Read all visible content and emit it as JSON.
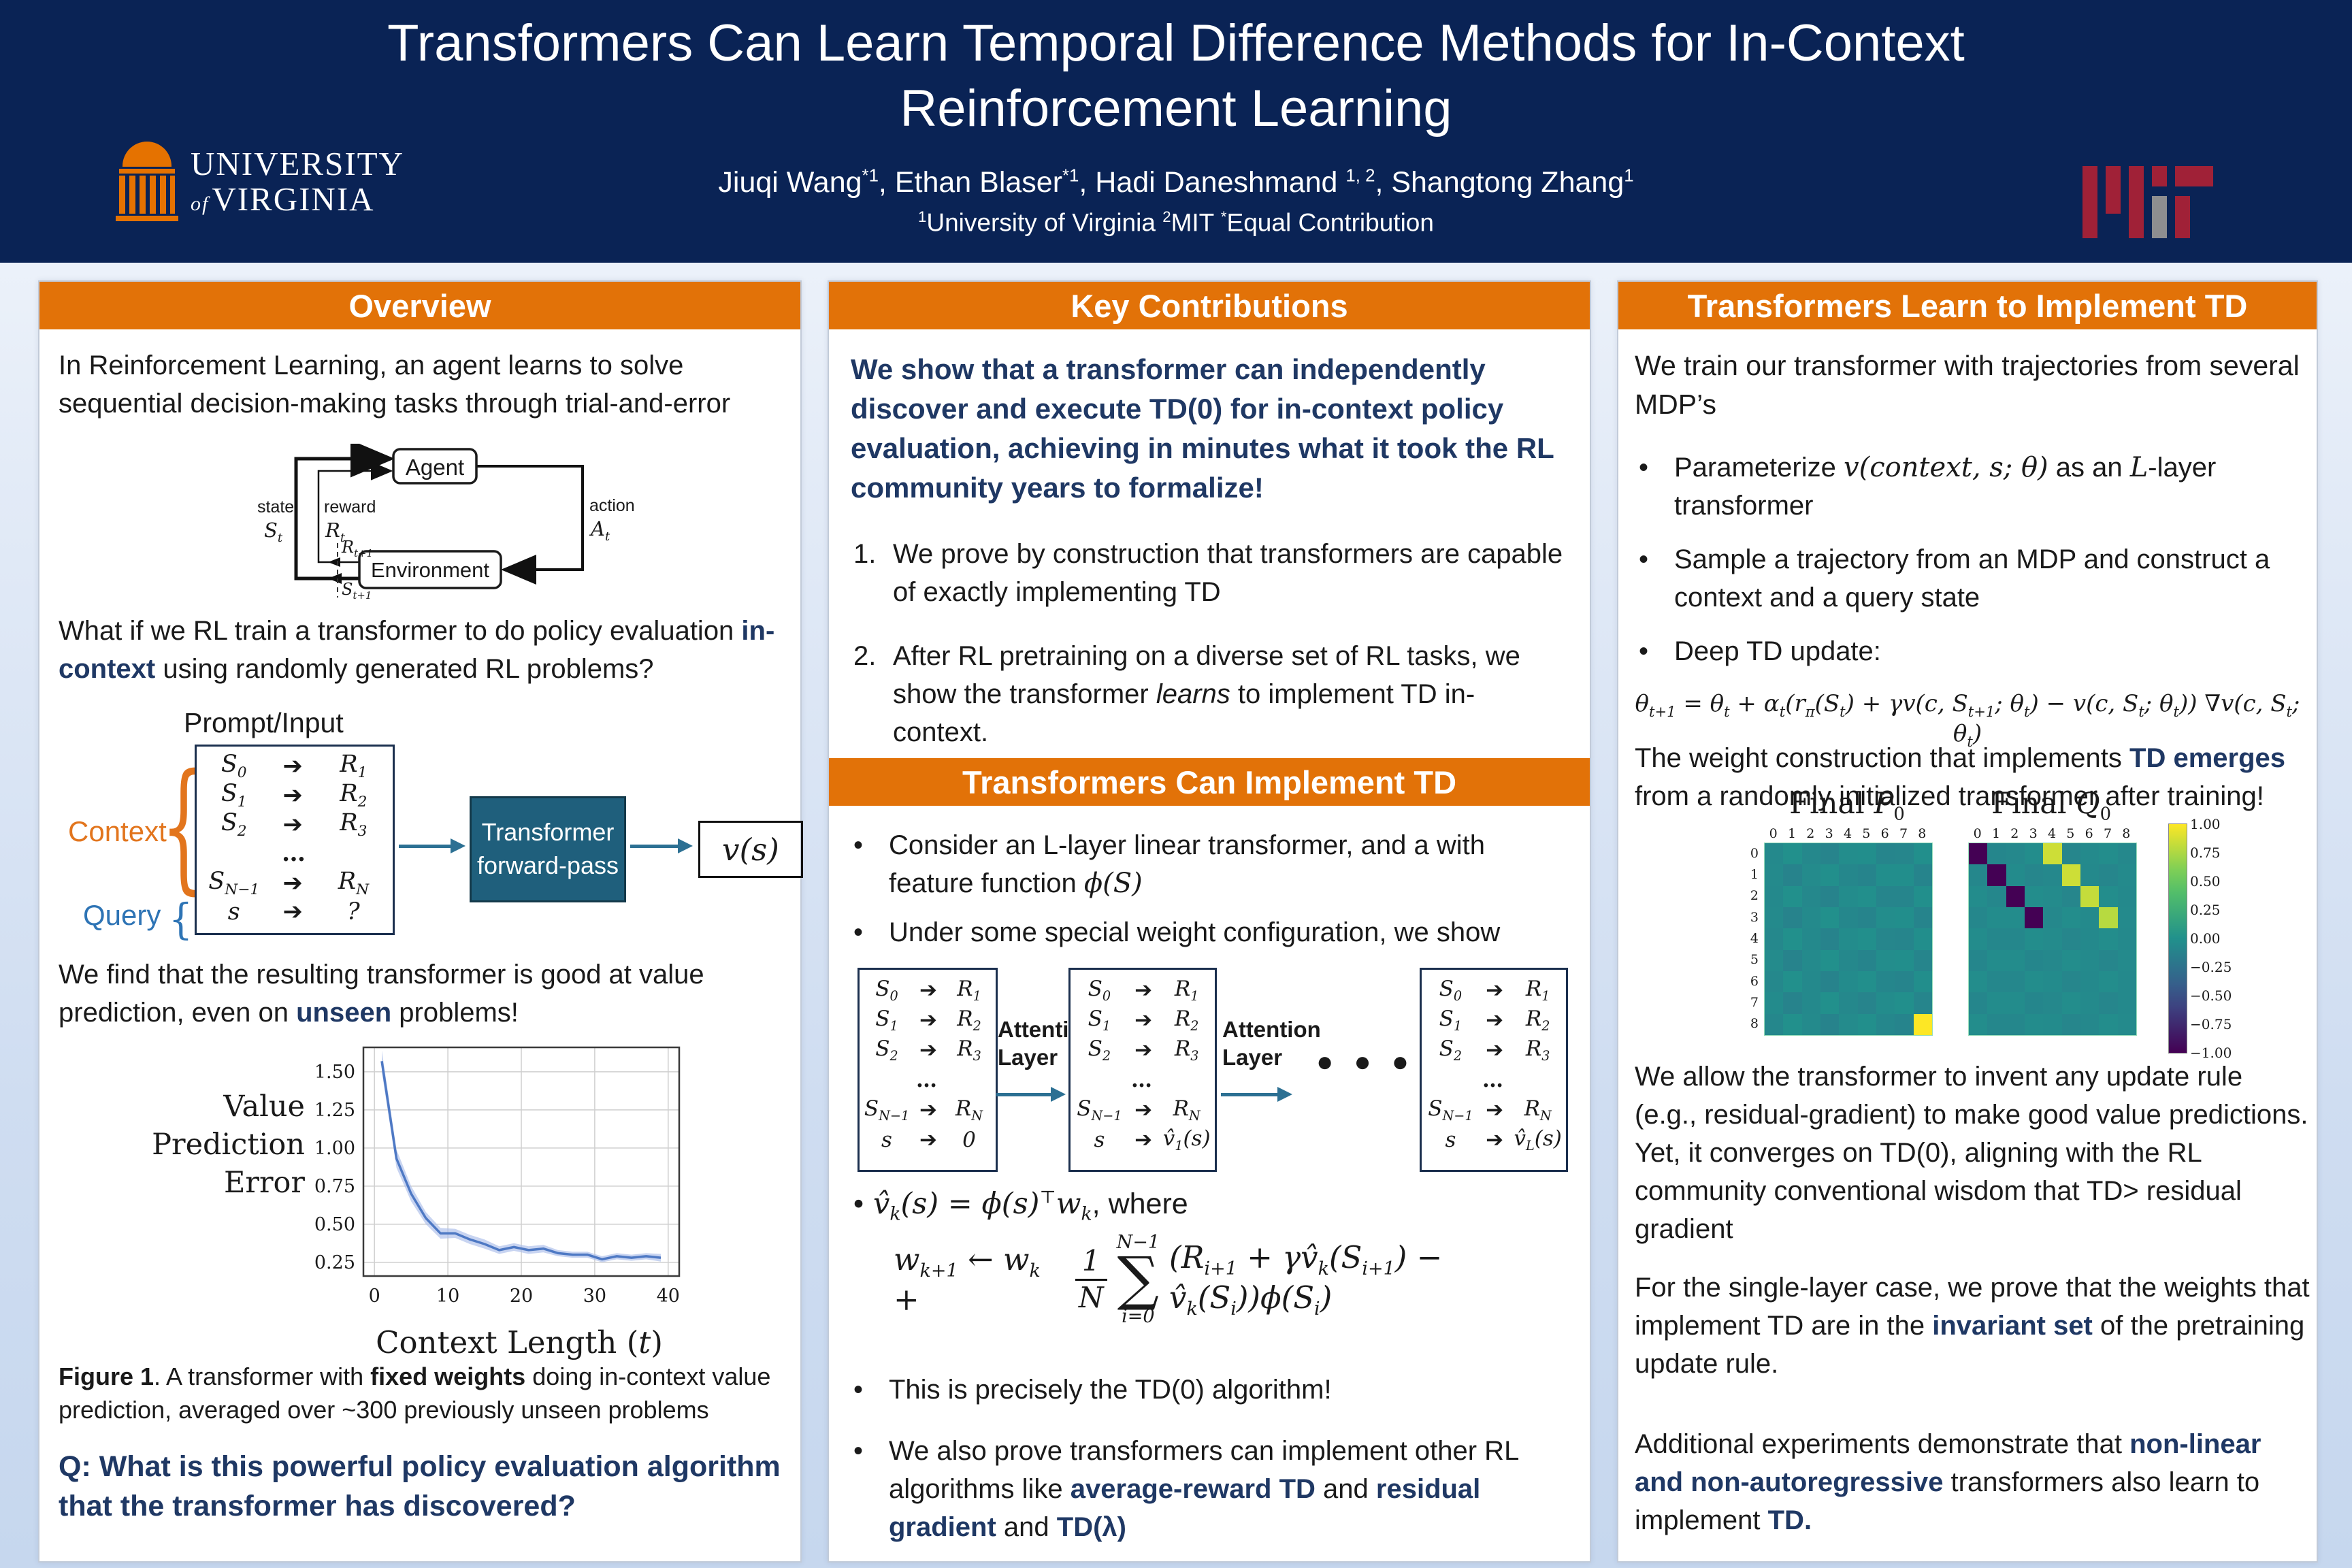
{
  "colors": {
    "navy_header": "#0a2355",
    "orange": "#e27208",
    "accent_navy": "#1f3864",
    "teal_box": "#1f5f7c",
    "arrow_teal": "#2c7093",
    "context_orange": "#e2751d",
    "query_blue": "#2e74b5",
    "chart_line": "#4e79c4",
    "chart_band": "#aabdea",
    "mit_red": "#a02137",
    "mit_gray": "#8e8e90",
    "uva_orange": "#e57200"
  },
  "header": {
    "title_line1": "Transformers Can Learn Temporal Difference Methods for In-Context",
    "title_line2": "Reinforcement Learning",
    "authors_html": "Jiuqi Wang<sup>*1</sup>, Ethan Blaser<sup>*1</sup>, Hadi Daneshmand <sup>1, 2</sup>, Shangtong Zhang<sup>1</sup>",
    "affiliations_html": "<sup>1</sup>University of Virginia <sup>2</sup>MIT <sup>*</sup>Equal Contribution",
    "uva_line1": "UNIVERSITY",
    "uva_of": "of",
    "uva_line2": "VIRGINIA"
  },
  "seq": {
    "arrow": "➔",
    "rows": [
      [
        "S<sub>0</sub>",
        "R<sub>1</sub>"
      ],
      [
        "S<sub>1</sub>",
        "R<sub>2</sub>"
      ],
      [
        "S<sub>2</sub>",
        "R<sub>3</sub>"
      ],
      null,
      [
        "S<sub>N−1</sub>",
        "R<sub>N</sub>"
      ]
    ]
  },
  "chart_data": [
    {
      "id": "value-prediction-error",
      "type": "line",
      "title": "",
      "xlabel_html": "Context Length (<i>t</i>)",
      "ylabel_lines": [
        "Value",
        "Prediction",
        "Error"
      ],
      "x": [
        1,
        3,
        5,
        7,
        9,
        11,
        13,
        15,
        17,
        19,
        21,
        23,
        25,
        27,
        29,
        31,
        33,
        35,
        37,
        39
      ],
      "y": [
        1.57,
        0.93,
        0.7,
        0.54,
        0.44,
        0.44,
        0.4,
        0.37,
        0.33,
        0.35,
        0.33,
        0.34,
        0.31,
        0.3,
        0.3,
        0.27,
        0.29,
        0.28,
        0.29,
        0.28
      ],
      "band_halfwidth": [
        0.07,
        0.06,
        0.05,
        0.04,
        0.035,
        0.03,
        0.03,
        0.03,
        0.025,
        0.025,
        0.025,
        0.025,
        0.02,
        0.02,
        0.02,
        0.02,
        0.02,
        0.02,
        0.02,
        0.025
      ],
      "xlim": [
        -1.5,
        41.5
      ],
      "ylim": [
        0.16,
        1.66
      ],
      "xticks": [
        0,
        10,
        20,
        30,
        40
      ],
      "yticks": [
        0.25,
        0.5,
        0.75,
        1.0,
        1.25,
        1.5
      ],
      "grid": true,
      "legend": null
    },
    {
      "id": "final-P0",
      "type": "heatmap",
      "title_html": "Final <i>P</i><sub>0</sub>",
      "size": 9,
      "col_labels": [
        "0",
        "1",
        "2",
        "3",
        "4",
        "5",
        "6",
        "7",
        "8"
      ],
      "row_labels": [
        "0",
        "1",
        "2",
        "3",
        "4",
        "5",
        "6",
        "7",
        "8"
      ],
      "value_range": [
        -1,
        1
      ],
      "base_value": -0.06,
      "cells": [
        [
          8,
          8,
          1.0
        ]
      ]
    },
    {
      "id": "final-Q0",
      "type": "heatmap",
      "title_html": "Final <i>Q</i><sub>0</sub>",
      "size": 9,
      "col_labels": [
        "0",
        "1",
        "2",
        "3",
        "4",
        "5",
        "6",
        "7",
        "8"
      ],
      "row_labels": null,
      "value_range": [
        -1,
        1
      ],
      "base_value": -0.06,
      "cells": [
        [
          0,
          0,
          -1
        ],
        [
          1,
          1,
          -1
        ],
        [
          2,
          2,
          -1
        ],
        [
          3,
          3,
          -1
        ],
        [
          0,
          4,
          0.85
        ],
        [
          1,
          5,
          0.85
        ],
        [
          2,
          6,
          0.82
        ],
        [
          3,
          7,
          0.78
        ]
      ],
      "colorbar_ticks": [
        "1.00",
        "0.75",
        "0.50",
        "0.25",
        "0.00",
        "−0.25",
        "−0.50",
        "−0.75",
        "−1.00"
      ]
    }
  ],
  "col1": {
    "header": "Overview",
    "p1": "In Reinforcement Learning, an agent learns to solve sequential decision-making tasks through trial-and-error",
    "rl": {
      "agent": "Agent",
      "environment": "Environment",
      "state": "state",
      "state_sym": "S<sub>t</sub>",
      "reward": "reward",
      "reward_sym": "R<sub>t</sub>",
      "action": "action",
      "action_sym": "A<sub>t</sub>",
      "r_next": "R<sub>t+1</sub>",
      "s_next": "S<sub>t+1</sub>"
    },
    "p2_html": "What if we RL train a transformer to do policy evaluation <b class='navy'>in-context</b> using randomly generated RL problems?",
    "prompt_label": "Prompt/Input",
    "context_label": "Context",
    "query_label": "Query",
    "prompt_last": [
      "s",
      "?"
    ],
    "transformer_box_html": "Transformer<br>forward-pass",
    "output_html": "v(s)",
    "p3_html": "We find that the resulting transformer is good at value prediction, even on <b class='navy'>unseen</b> problems!",
    "caption_html": "<b>Figure 1</b>. A transformer with <b>fixed weights</b> doing in-context value prediction, averaged over ~300 previously unseen problems",
    "q_html": "Q: What is this powerful policy evaluation algorithm that the transformer has discovered?"
  },
  "col2": {
    "header1": "Key Contributions",
    "intro": "We show that a transformer can independently discover and execute TD(0) for in-context policy evaluation, achieving in minutes what it took the RL community years to formalize!",
    "item1_num": "1.",
    "item1": "We prove by construction that transformers are capable of exactly implementing TD",
    "item2_num": "2.",
    "item2_html": "After RL pretraining on a diverse set of RL tasks, we show the transformer <i>learns</i> to implement TD in-context.",
    "header2": "Transformers Can Implement TD",
    "bullet1_html": "Consider an L-layer linear transformer, and a with feature function <span class='mi'>ϕ(S)</span>",
    "bullet2": "Under some special weight configuration, we show",
    "attention_html": "Attention<br>Layer",
    "dots": "●●●",
    "box1_last": [
      "s",
      "0"
    ],
    "box2_last": [
      "s",
      "v̂<sub>1</sub>(s)"
    ],
    "box3_last": [
      "s",
      "v̂<sub>L</sub>(s)"
    ],
    "vhat_html": "v̂<sub>k</sub>(s) = ϕ(s)<sup>⊤</sup>w<sub>k</sub><span class='rm'>, where</span>",
    "formula": {
      "lhs": "w<sub>k+1</sub> ← w<sub>k</sub> +",
      "num": "1",
      "den": "N",
      "sum_top": "N−1",
      "sigma": "∑",
      "sum_bot": "i=0",
      "rhs": "(R<sub>i+1</sub> + γv̂<sub>k</sub>(S<sub>i+1</sub>) − v̂<sub>k</sub>(S<sub>i</sub>))ϕ(S<sub>i</sub>)"
    },
    "bullet3": "This is precisely the TD(0) algorithm!",
    "bullet4_html": "We also prove transformers can implement other RL algorithms like <b class='navy'>average-reward TD</b> and <b class='navy'>residual gradient</b> and <b class='navy'>TD(λ)</b>"
  },
  "col3": {
    "header": "Transformers Learn to Implement TD",
    "p1": "We train our transformer with trajectories from several MDP’s",
    "bullets": [
      "Parameterize <span class='mi'>v(context, s; θ)</span> as an <span class='mi'>L</span>-layer transformer",
      "Sample a trajectory from an MDP and construct a context and a query state",
      "Deep TD update:"
    ],
    "formula_html": "θ<sub>t+1</sub> = θ<sub>t</sub> + α<sub>t</sub>(r<sub>π</sub>(S<sub>t</sub>) + γv(c, S<sub>t+1</sub>; θ<sub>t</sub>) − v(c, S<sub>t</sub>; θ<sub>t</sub>)) ∇v(c, S<sub>t</sub>; θ<sub>t</sub>)",
    "p2_html": "The weight construction that implements <b class='navy'>TD emerges</b> from a randomly initialized transformer after training!",
    "p3": "We allow the transformer to invent any update rule (e.g., residual-gradient) to make good value predictions. Yet, it converges on TD(0), aligning with the RL community conventional wisdom that TD> residual gradient",
    "p4_html": "For the single-layer case, we prove that the weights that implement TD are in the <b class='navy'>invariant set</b> of the pretraining update rule.",
    "p5_html": "Additional experiments demonstrate that <b class='navy'>non-linear and non-autoregressive</b> transformers also learn to implement <b class='navy'>TD.</b>"
  }
}
